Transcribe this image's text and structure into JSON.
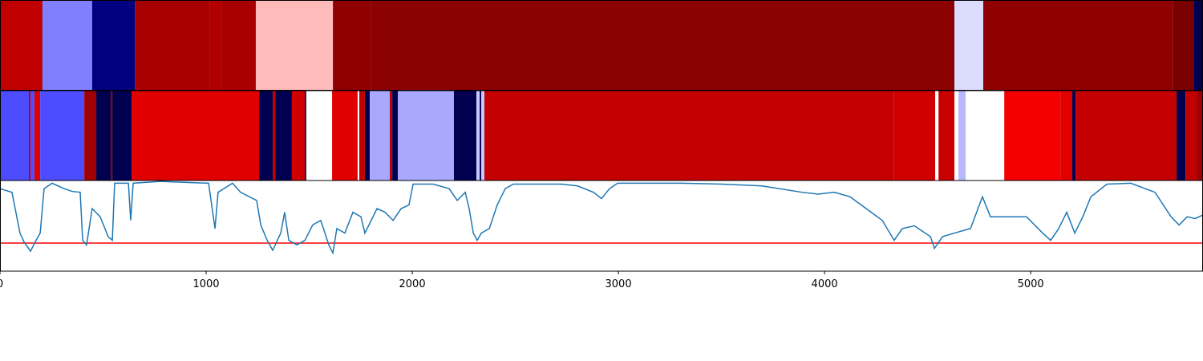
{
  "chart_data": {
    "type": "strips-line",
    "xlim": [
      0,
      5836
    ],
    "xticks": [
      0,
      1000,
      2000,
      3000,
      4000,
      5000
    ],
    "strips": [
      {
        "segments": [
          {
            "start": 0,
            "end": 206,
            "color": "#c00000"
          },
          {
            "start": 206,
            "end": 447,
            "color": "#8080ff"
          },
          {
            "start": 447,
            "end": 654,
            "color": "#000080"
          },
          {
            "start": 654,
            "end": 1019,
            "color": "#a80000"
          },
          {
            "start": 1019,
            "end": 1074,
            "color": "#b00000"
          },
          {
            "start": 1074,
            "end": 1241,
            "color": "#a80000"
          },
          {
            "start": 1241,
            "end": 1615,
            "color": "#ffbaba"
          },
          {
            "start": 1615,
            "end": 1798,
            "color": "#900000"
          },
          {
            "start": 1798,
            "end": 4630,
            "color": "#8b0000"
          },
          {
            "start": 4630,
            "end": 4770,
            "color": "#dcdcff"
          },
          {
            "start": 4770,
            "end": 5689,
            "color": "#8f0000"
          },
          {
            "start": 5689,
            "end": 5790,
            "color": "#7a0000"
          },
          {
            "start": 5790,
            "end": 5836,
            "color": "#000050"
          }
        ]
      },
      {
        "segments": [
          {
            "start": 0,
            "end": 140,
            "color": "#4d4dff"
          },
          {
            "start": 140,
            "end": 148,
            "color": "#c00000"
          },
          {
            "start": 148,
            "end": 167,
            "color": "#4d4dff"
          },
          {
            "start": 167,
            "end": 195,
            "color": "#e00000"
          },
          {
            "start": 195,
            "end": 409,
            "color": "#4d4dff"
          },
          {
            "start": 409,
            "end": 467,
            "color": "#a00000"
          },
          {
            "start": 467,
            "end": 537,
            "color": "#000050"
          },
          {
            "start": 537,
            "end": 545,
            "color": "#900000"
          },
          {
            "start": 545,
            "end": 638,
            "color": "#000050"
          },
          {
            "start": 638,
            "end": 1257,
            "color": "#e00000"
          },
          {
            "start": 1257,
            "end": 1323,
            "color": "#000050"
          },
          {
            "start": 1323,
            "end": 1335,
            "color": "#c00000"
          },
          {
            "start": 1335,
            "end": 1416,
            "color": "#000050"
          },
          {
            "start": 1416,
            "end": 1479,
            "color": "#d00000"
          },
          {
            "start": 1479,
            "end": 1486,
            "color": "#000050"
          },
          {
            "start": 1486,
            "end": 1611,
            "color": "#ffffff"
          },
          {
            "start": 1611,
            "end": 1735,
            "color": "#e00000"
          },
          {
            "start": 1735,
            "end": 1743,
            "color": "#ffffff"
          },
          {
            "start": 1743,
            "end": 1770,
            "color": "#c00000"
          },
          {
            "start": 1770,
            "end": 1794,
            "color": "#000050"
          },
          {
            "start": 1794,
            "end": 1891,
            "color": "#a8a8ff"
          },
          {
            "start": 1891,
            "end": 1903,
            "color": "#c00000"
          },
          {
            "start": 1903,
            "end": 1930,
            "color": "#000050"
          },
          {
            "start": 1930,
            "end": 2202,
            "color": "#a8a8ff"
          },
          {
            "start": 2202,
            "end": 2311,
            "color": "#000050"
          },
          {
            "start": 2311,
            "end": 2327,
            "color": "#c8c8ff"
          },
          {
            "start": 2327,
            "end": 2335,
            "color": "#000050"
          },
          {
            "start": 2335,
            "end": 2350,
            "color": "#c8c8ff"
          },
          {
            "start": 2350,
            "end": 4335,
            "color": "#c40000"
          },
          {
            "start": 4335,
            "end": 4537,
            "color": "#d00000"
          },
          {
            "start": 4537,
            "end": 4553,
            "color": "#ffffff"
          },
          {
            "start": 4553,
            "end": 4630,
            "color": "#c80000"
          },
          {
            "start": 4630,
            "end": 4650,
            "color": "#ffffff"
          },
          {
            "start": 4650,
            "end": 4685,
            "color": "#b8b8ff"
          },
          {
            "start": 4685,
            "end": 4872,
            "color": "#ffffff"
          },
          {
            "start": 4872,
            "end": 5144,
            "color": "#f50000"
          },
          {
            "start": 5144,
            "end": 5202,
            "color": "#e00000"
          },
          {
            "start": 5202,
            "end": 5218,
            "color": "#000050"
          },
          {
            "start": 5218,
            "end": 5708,
            "color": "#c40000"
          },
          {
            "start": 5708,
            "end": 5751,
            "color": "#000050"
          },
          {
            "start": 5751,
            "end": 5805,
            "color": "#c00000"
          },
          {
            "start": 5805,
            "end": 5836,
            "color": "#a00000"
          }
        ]
      }
    ],
    "ylim": [
      0,
      1
    ],
    "hline": 0.31,
    "hline_color": "#ff0000",
    "series": [
      {
        "color": "#1f77b4",
        "x": [
          0,
          58,
          97,
          117,
          148,
          175,
          195,
          214,
          253,
          311,
          350,
          389,
          401,
          420,
          447,
          486,
          525,
          545,
          556,
          623,
          634,
          646,
          778,
          1012,
          1043,
          1058,
          1128,
          1167,
          1245,
          1265,
          1296,
          1323,
          1362,
          1381,
          1401,
          1440,
          1479,
          1517,
          1556,
          1595,
          1615,
          1634,
          1673,
          1712,
          1751,
          1770,
          1790,
          1829,
          1868,
          1907,
          1946,
          1984,
          2004,
          2101,
          2179,
          2218,
          2257,
          2276,
          2296,
          2315,
          2335,
          2374,
          2412,
          2451,
          2490,
          2724,
          2802,
          2879,
          2918,
          2957,
          2996,
          3307,
          3502,
          3696,
          3891,
          3969,
          4047,
          4124,
          4202,
          4280,
          4338,
          4377,
          4436,
          4514,
          4533,
          4572,
          4630,
          4708,
          4766,
          4805,
          4903,
          4980,
          5058,
          5097,
          5136,
          5175,
          5214,
          5253,
          5292,
          5370,
          5486,
          5603,
          5681,
          5720,
          5759,
          5798,
          5836
        ],
        "values": [
          0.91,
          0.87,
          0.42,
          0.32,
          0.22,
          0.34,
          0.42,
          0.91,
          0.97,
          0.91,
          0.88,
          0.87,
          0.34,
          0.29,
          0.69,
          0.6,
          0.38,
          0.34,
          0.97,
          0.97,
          0.56,
          0.97,
          0.99,
          0.97,
          0.47,
          0.87,
          0.97,
          0.87,
          0.78,
          0.51,
          0.34,
          0.23,
          0.42,
          0.65,
          0.34,
          0.29,
          0.34,
          0.51,
          0.56,
          0.29,
          0.2,
          0.47,
          0.42,
          0.65,
          0.6,
          0.42,
          0.51,
          0.69,
          0.65,
          0.56,
          0.69,
          0.73,
          0.96,
          0.96,
          0.91,
          0.78,
          0.87,
          0.69,
          0.42,
          0.34,
          0.42,
          0.47,
          0.73,
          0.91,
          0.96,
          0.96,
          0.94,
          0.87,
          0.8,
          0.91,
          0.97,
          0.97,
          0.96,
          0.94,
          0.87,
          0.85,
          0.87,
          0.82,
          0.69,
          0.56,
          0.34,
          0.47,
          0.5,
          0.38,
          0.25,
          0.38,
          0.42,
          0.47,
          0.82,
          0.6,
          0.6,
          0.6,
          0.42,
          0.34,
          0.47,
          0.65,
          0.42,
          0.6,
          0.82,
          0.96,
          0.97,
          0.87,
          0.6,
          0.51,
          0.6,
          0.58,
          0.62
        ]
      }
    ]
  }
}
